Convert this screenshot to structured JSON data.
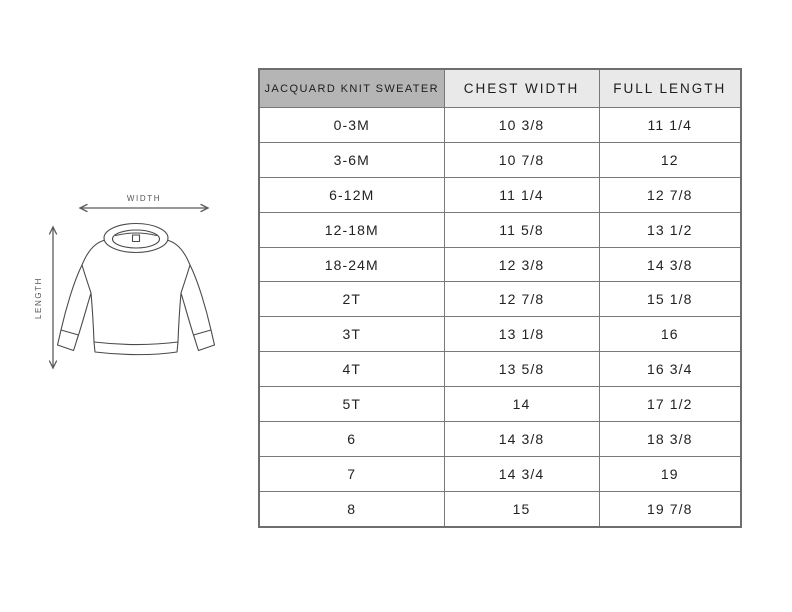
{
  "title": "JACQUARD KNIT SWEATER",
  "diagram": {
    "width_label": "WIDTH",
    "length_label": "LENGTH"
  },
  "chart_data": {
    "type": "table",
    "title": "JACQUARD KNIT SWEATER",
    "columns": [
      "JACQUARD KNIT SWEATER",
      "CHEST WIDTH",
      "FULL LENGTH"
    ],
    "rows": [
      [
        "0-3M",
        "10 3/8",
        "11 1/4"
      ],
      [
        "3-6M",
        "10 7/8",
        "12"
      ],
      [
        "6-12M",
        "11 1/4",
        "12 7/8"
      ],
      [
        "12-18M",
        "11 5/8",
        "13 1/2"
      ],
      [
        "18-24M",
        "12 3/8",
        "14 3/8"
      ],
      [
        "2T",
        "12 7/8",
        "15 1/8"
      ],
      [
        "3T",
        "13 1/8",
        "16"
      ],
      [
        "4T",
        "13 5/8",
        "16 3/4"
      ],
      [
        "5T",
        "14",
        "17 1/2"
      ],
      [
        "6",
        "14 3/8",
        "18 3/8"
      ],
      [
        "7",
        "14 3/4",
        "19"
      ],
      [
        "8",
        "15",
        "19 7/8"
      ]
    ]
  },
  "colors": {
    "header_primary_bg": "#b5b5b5",
    "header_secondary_bg": "#e9e9e9",
    "table_border": "#787878",
    "text": "#222222",
    "line_art": "#4a4a4a",
    "background": "#ffffff"
  }
}
